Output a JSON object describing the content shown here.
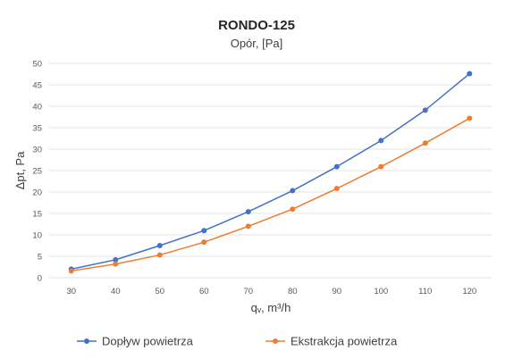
{
  "chart_data": {
    "type": "line",
    "title": "RONDO-125",
    "subtitle": "Opór, [Pa]",
    "xlabel": "qᵥ, m³/h",
    "ylabel": "Δpt, Pa",
    "x": [
      30,
      40,
      50,
      60,
      70,
      80,
      90,
      100,
      110,
      120
    ],
    "xticks": [
      "30",
      "40",
      "50",
      "60",
      "70",
      "80",
      "90",
      "100",
      "110",
      "120"
    ],
    "ylim": [
      0,
      50
    ],
    "yticks": [
      "0",
      "5",
      "10",
      "15",
      "20",
      "25",
      "30",
      "35",
      "40",
      "45",
      "50"
    ],
    "grid": true,
    "legend_position": "bottom",
    "series": [
      {
        "name": "Dopływ powietrza",
        "color": "#4472c4",
        "values": [
          2.0,
          4.2,
          7.5,
          11.0,
          15.4,
          20.3,
          25.9,
          32.0,
          39.1,
          47.6
        ]
      },
      {
        "name": "Ekstrakcja powietrza",
        "color": "#ed7d31",
        "values": [
          1.6,
          3.2,
          5.3,
          8.3,
          12.0,
          16.0,
          20.8,
          25.9,
          31.4,
          37.2
        ]
      }
    ]
  }
}
